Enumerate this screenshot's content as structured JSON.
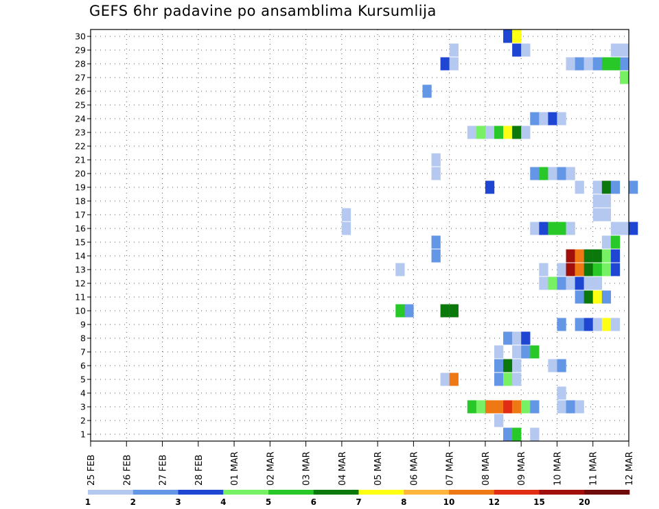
{
  "chart_data": {
    "type": "heatmap",
    "title": "GEFS 6hr padavine po ansamblima Kursumlija",
    "xlabel": "",
    "ylabel": "",
    "x_tick_labels": [
      "25 FEB",
      "26 FEB",
      "27 FEB",
      "28 FEB",
      "01 MAR",
      "02 MAR",
      "03 MAR",
      "04 MAR",
      "05 MAR",
      "06 MAR",
      "07 MAR",
      "08 MAR",
      "09 MAR",
      "10 MAR",
      "11 MAR",
      "12 MAR"
    ],
    "y_range": [
      1,
      30
    ],
    "y_ticks": [
      1,
      2,
      3,
      4,
      5,
      6,
      7,
      8,
      9,
      10,
      11,
      12,
      13,
      14,
      15,
      16,
      17,
      18,
      19,
      20,
      21,
      22,
      23,
      24,
      25,
      26,
      27,
      28,
      29,
      30
    ],
    "grid": true,
    "x_unit": "6-hour steps from 25 FEB 00Z",
    "legend": {
      "placement": "bottom",
      "labels": [
        "1",
        "2",
        "3",
        "4",
        "5",
        "6",
        "7",
        "8",
        "10",
        "12",
        "15",
        "20"
      ],
      "colors": [
        "#b4c8f0",
        "#6496e6",
        "#1e46d2",
        "#78f064",
        "#28c828",
        "#0a780a",
        "#ffff14",
        "#ffb43c",
        "#f07814",
        "#e12d14",
        "#a00f0a",
        "#6e0a0a"
      ]
    },
    "cells": [
      {
        "member": 30,
        "step": 46,
        "cat": 2
      },
      {
        "member": 30,
        "step": 47,
        "cat": 6
      },
      {
        "member": 29,
        "step": 40,
        "cat": 0
      },
      {
        "member": 29,
        "step": 47,
        "cat": 2
      },
      {
        "member": 29,
        "step": 48,
        "cat": 0
      },
      {
        "member": 29,
        "step": 58,
        "cat": 0
      },
      {
        "member": 29,
        "step": 59,
        "cat": 0
      },
      {
        "member": 28,
        "step": 39,
        "cat": 2
      },
      {
        "member": 28,
        "step": 40,
        "cat": 0
      },
      {
        "member": 28,
        "step": 53,
        "cat": 0
      },
      {
        "member": 28,
        "step": 54,
        "cat": 1
      },
      {
        "member": 28,
        "step": 55,
        "cat": 0
      },
      {
        "member": 28,
        "step": 56,
        "cat": 1
      },
      {
        "member": 28,
        "step": 57,
        "cat": 4
      },
      {
        "member": 28,
        "step": 58,
        "cat": 4
      },
      {
        "member": 28,
        "step": 59,
        "cat": 1
      },
      {
        "member": 27,
        "step": 59,
        "cat": 3
      },
      {
        "member": 26,
        "step": 37,
        "cat": 1
      },
      {
        "member": 24,
        "step": 49,
        "cat": 1
      },
      {
        "member": 24,
        "step": 50,
        "cat": 0
      },
      {
        "member": 24,
        "step": 51,
        "cat": 2
      },
      {
        "member": 24,
        "step": 52,
        "cat": 0
      },
      {
        "member": 23,
        "step": 42,
        "cat": 0
      },
      {
        "member": 23,
        "step": 43,
        "cat": 3
      },
      {
        "member": 23,
        "step": 44,
        "cat": 0
      },
      {
        "member": 23,
        "step": 45,
        "cat": 4
      },
      {
        "member": 23,
        "step": 46,
        "cat": 6
      },
      {
        "member": 23,
        "step": 47,
        "cat": 5
      },
      {
        "member": 23,
        "step": 48,
        "cat": 0
      },
      {
        "member": 21,
        "step": 38,
        "cat": 0
      },
      {
        "member": 20,
        "step": 38,
        "cat": 0
      },
      {
        "member": 20,
        "step": 49,
        "cat": 1
      },
      {
        "member": 20,
        "step": 50,
        "cat": 4
      },
      {
        "member": 20,
        "step": 51,
        "cat": 0
      },
      {
        "member": 20,
        "step": 52,
        "cat": 1
      },
      {
        "member": 20,
        "step": 53,
        "cat": 0
      },
      {
        "member": 19,
        "step": 44,
        "cat": 2
      },
      {
        "member": 19,
        "step": 54,
        "cat": 0
      },
      {
        "member": 19,
        "step": 56,
        "cat": 0
      },
      {
        "member": 19,
        "step": 57,
        "cat": 5
      },
      {
        "member": 19,
        "step": 58,
        "cat": 1
      },
      {
        "member": 19,
        "step": 60,
        "cat": 1
      },
      {
        "member": 18,
        "step": 56,
        "cat": 0
      },
      {
        "member": 18,
        "step": 57,
        "cat": 0
      },
      {
        "member": 17,
        "step": 28,
        "cat": 0
      },
      {
        "member": 17,
        "step": 56,
        "cat": 0
      },
      {
        "member": 17,
        "step": 57,
        "cat": 0
      },
      {
        "member": 16,
        "step": 28,
        "cat": 0
      },
      {
        "member": 16,
        "step": 49,
        "cat": 0
      },
      {
        "member": 16,
        "step": 50,
        "cat": 2
      },
      {
        "member": 16,
        "step": 51,
        "cat": 4
      },
      {
        "member": 16,
        "step": 52,
        "cat": 4
      },
      {
        "member": 16,
        "step": 53,
        "cat": 0
      },
      {
        "member": 16,
        "step": 58,
        "cat": 0
      },
      {
        "member": 16,
        "step": 59,
        "cat": 0
      },
      {
        "member": 16,
        "step": 60,
        "cat": 2
      },
      {
        "member": 15,
        "step": 38,
        "cat": 1
      },
      {
        "member": 15,
        "step": 57,
        "cat": 0
      },
      {
        "member": 15,
        "step": 58,
        "cat": 4
      },
      {
        "member": 14,
        "step": 38,
        "cat": 1
      },
      {
        "member": 14,
        "step": 53,
        "cat": 10
      },
      {
        "member": 14,
        "step": 54,
        "cat": 8
      },
      {
        "member": 14,
        "step": 55,
        "cat": 5
      },
      {
        "member": 14,
        "step": 56,
        "cat": 5
      },
      {
        "member": 14,
        "step": 57,
        "cat": 3
      },
      {
        "member": 14,
        "step": 58,
        "cat": 2
      },
      {
        "member": 13,
        "step": 34,
        "cat": 0
      },
      {
        "member": 13,
        "step": 50,
        "cat": 0
      },
      {
        "member": 13,
        "step": 52,
        "cat": 0
      },
      {
        "member": 13,
        "step": 53,
        "cat": 10
      },
      {
        "member": 13,
        "step": 54,
        "cat": 8
      },
      {
        "member": 13,
        "step": 55,
        "cat": 5
      },
      {
        "member": 13,
        "step": 56,
        "cat": 4
      },
      {
        "member": 13,
        "step": 57,
        "cat": 3
      },
      {
        "member": 13,
        "step": 58,
        "cat": 2
      },
      {
        "member": 12,
        "step": 50,
        "cat": 0
      },
      {
        "member": 12,
        "step": 51,
        "cat": 3
      },
      {
        "member": 12,
        "step": 52,
        "cat": 1
      },
      {
        "member": 12,
        "step": 53,
        "cat": 0
      },
      {
        "member": 12,
        "step": 54,
        "cat": 2
      },
      {
        "member": 12,
        "step": 55,
        "cat": 0
      },
      {
        "member": 12,
        "step": 56,
        "cat": 0
      },
      {
        "member": 11,
        "step": 54,
        "cat": 1
      },
      {
        "member": 11,
        "step": 55,
        "cat": 5
      },
      {
        "member": 11,
        "step": 56,
        "cat": 6
      },
      {
        "member": 11,
        "step": 57,
        "cat": 1
      },
      {
        "member": 10,
        "step": 34,
        "cat": 4
      },
      {
        "member": 10,
        "step": 35,
        "cat": 1
      },
      {
        "member": 10,
        "step": 39,
        "cat": 5
      },
      {
        "member": 10,
        "step": 40,
        "cat": 5
      },
      {
        "member": 9,
        "step": 52,
        "cat": 1
      },
      {
        "member": 9,
        "step": 54,
        "cat": 1
      },
      {
        "member": 9,
        "step": 55,
        "cat": 2
      },
      {
        "member": 9,
        "step": 56,
        "cat": 0
      },
      {
        "member": 9,
        "step": 57,
        "cat": 6
      },
      {
        "member": 9,
        "step": 58,
        "cat": 0
      },
      {
        "member": 8,
        "step": 46,
        "cat": 1
      },
      {
        "member": 8,
        "step": 47,
        "cat": 0
      },
      {
        "member": 8,
        "step": 48,
        "cat": 2
      },
      {
        "member": 7,
        "step": 45,
        "cat": 0
      },
      {
        "member": 7,
        "step": 47,
        "cat": 0
      },
      {
        "member": 7,
        "step": 48,
        "cat": 1
      },
      {
        "member": 7,
        "step": 49,
        "cat": 4
      },
      {
        "member": 6,
        "step": 45,
        "cat": 1
      },
      {
        "member": 6,
        "step": 46,
        "cat": 5
      },
      {
        "member": 6,
        "step": 47,
        "cat": 0
      },
      {
        "member": 6,
        "step": 51,
        "cat": 0
      },
      {
        "member": 6,
        "step": 52,
        "cat": 1
      },
      {
        "member": 5,
        "step": 39,
        "cat": 0
      },
      {
        "member": 5,
        "step": 40,
        "cat": 8
      },
      {
        "member": 5,
        "step": 45,
        "cat": 1
      },
      {
        "member": 5,
        "step": 46,
        "cat": 3
      },
      {
        "member": 5,
        "step": 47,
        "cat": 0
      },
      {
        "member": 4,
        "step": 52,
        "cat": 0
      },
      {
        "member": 3,
        "step": 42,
        "cat": 4
      },
      {
        "member": 3,
        "step": 43,
        "cat": 3
      },
      {
        "member": 3,
        "step": 44,
        "cat": 8
      },
      {
        "member": 3,
        "step": 45,
        "cat": 8
      },
      {
        "member": 3,
        "step": 46,
        "cat": 9
      },
      {
        "member": 3,
        "step": 47,
        "cat": 8
      },
      {
        "member": 3,
        "step": 48,
        "cat": 3
      },
      {
        "member": 3,
        "step": 49,
        "cat": 1
      },
      {
        "member": 3,
        "step": 52,
        "cat": 0
      },
      {
        "member": 3,
        "step": 53,
        "cat": 1
      },
      {
        "member": 3,
        "step": 54,
        "cat": 0
      },
      {
        "member": 2,
        "step": 45,
        "cat": 0
      },
      {
        "member": 1,
        "step": 46,
        "cat": 1
      },
      {
        "member": 1,
        "step": 47,
        "cat": 4
      },
      {
        "member": 1,
        "step": 49,
        "cat": 0
      }
    ]
  }
}
